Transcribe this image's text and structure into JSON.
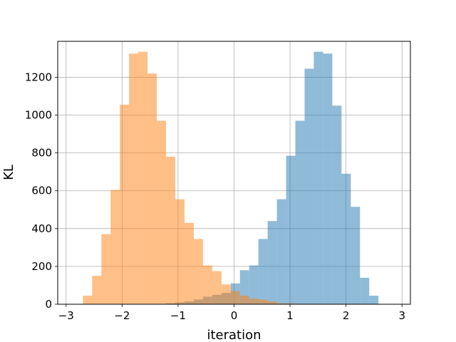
{
  "chart_data": {
    "type": "histogram",
    "title": "",
    "xlabel": "iteration",
    "ylabel": "KL",
    "xlim": [
      -3.15,
      3.15
    ],
    "ylim": [
      0,
      1390
    ],
    "xticks": [
      -3,
      -2,
      -1,
      0,
      1,
      2,
      3
    ],
    "xtick_labels": [
      "−3",
      "−2",
      "−1",
      "0",
      "1",
      "2",
      "3"
    ],
    "yticks": [
      0,
      200,
      400,
      600,
      800,
      1000,
      1200
    ],
    "ytick_labels": [
      "0",
      "200",
      "400",
      "600",
      "800",
      "1000",
      "1200"
    ],
    "grid": true,
    "bin_edges": [
      -2.7,
      -2.535,
      -2.37,
      -2.205,
      -2.04,
      -1.875,
      -1.71,
      -1.545,
      -1.38,
      -1.215,
      -1.05,
      -0.885,
      -0.72,
      -0.555,
      -0.39,
      -0.225,
      -0.06,
      0.105,
      0.27,
      0.435,
      0.6,
      0.765,
      0.93,
      1.095,
      1.26,
      1.425,
      1.59,
      1.755,
      1.92,
      2.085,
      2.25,
      2.415,
      2.58,
      2.745
    ],
    "series": [
      {
        "name": "",
        "color": "#1f77b4",
        "opacity": 0.5,
        "counts": [
          0,
          0,
          0,
          0,
          0,
          0,
          0,
          0,
          0,
          5,
          10,
          15,
          25,
          40,
          50,
          60,
          110,
          180,
          205,
          345,
          440,
          555,
          785,
          970,
          1245,
          1335,
          1325,
          1050,
          690,
          515,
          140,
          45,
          0
        ]
      },
      {
        "name": "",
        "color": "#ff7f0e",
        "opacity": 0.5,
        "counts": [
          45,
          150,
          370,
          605,
          1055,
          1325,
          1335,
          1220,
          970,
          780,
          555,
          430,
          345,
          205,
          175,
          105,
          70,
          45,
          30,
          25,
          15,
          5,
          5,
          0,
          0,
          0,
          0,
          0,
          0,
          0,
          0,
          0,
          0
        ]
      }
    ]
  }
}
